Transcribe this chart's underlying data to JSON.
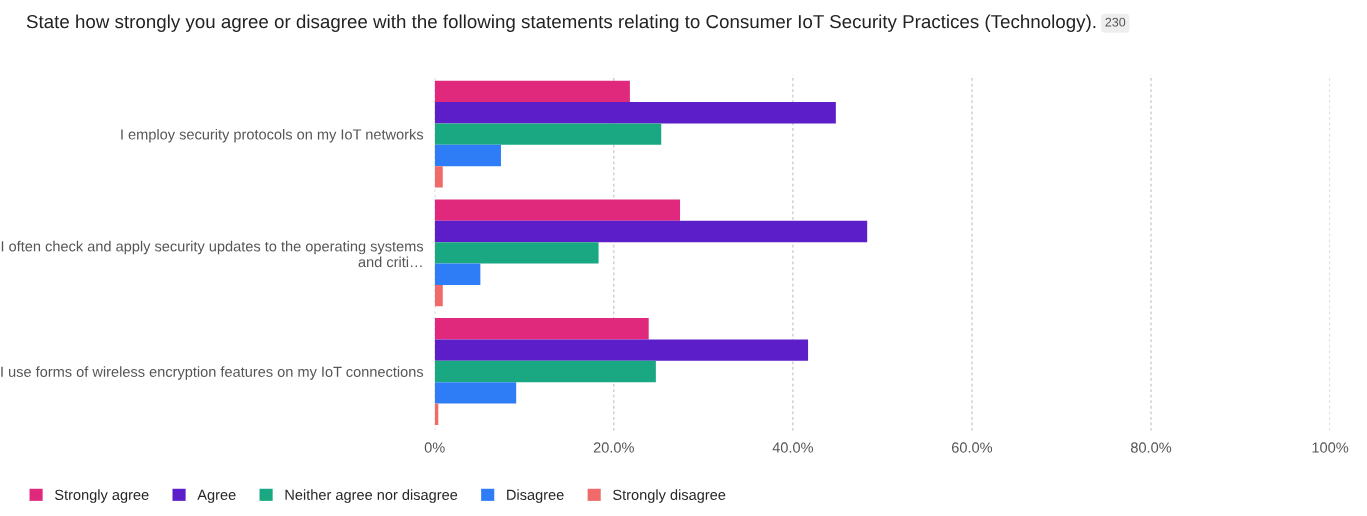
{
  "chart_data": {
    "type": "bar",
    "orientation": "horizontal",
    "title": "State how strongly you agree or disagree with the following statements relating to Consumer IoT Security Practices (Technology).",
    "annotations": [
      "230"
    ],
    "categories": [
      "I employ security protocols on my IoT networks",
      "I often check and apply security updates to the operating systems\nand criti…",
      "I use forms of wireless encryption features on my IoT connections"
    ],
    "series": [
      {
        "name": "Strongly agree",
        "color": "#e0287d",
        "values": [
          21.8,
          27.4,
          23.9
        ]
      },
      {
        "name": "Agree",
        "color": "#5b1ec8",
        "values": [
          44.8,
          48.3,
          41.7
        ]
      },
      {
        "name": "Neither agree nor disagree",
        "color": "#1aa883",
        "values": [
          25.3,
          18.3,
          24.7
        ]
      },
      {
        "name": "Disagree",
        "color": "#2e7cf6",
        "values": [
          7.4,
          5.1,
          9.1
        ]
      },
      {
        "name": "Strongly disagree",
        "color": "#f06a6a",
        "values": [
          0.9,
          0.9,
          0.4
        ]
      }
    ],
    "xlim": [
      0,
      100
    ],
    "xticks": [
      {
        "value": 0,
        "label": "0%"
      },
      {
        "value": 20,
        "label": "20.0%"
      },
      {
        "value": 40,
        "label": "40.0%"
      },
      {
        "value": 60,
        "label": "60.0%"
      },
      {
        "value": 80,
        "label": "80.0%"
      },
      {
        "value": 100,
        "label": "100%"
      }
    ],
    "grid": "x",
    "legend": "bottom left"
  }
}
